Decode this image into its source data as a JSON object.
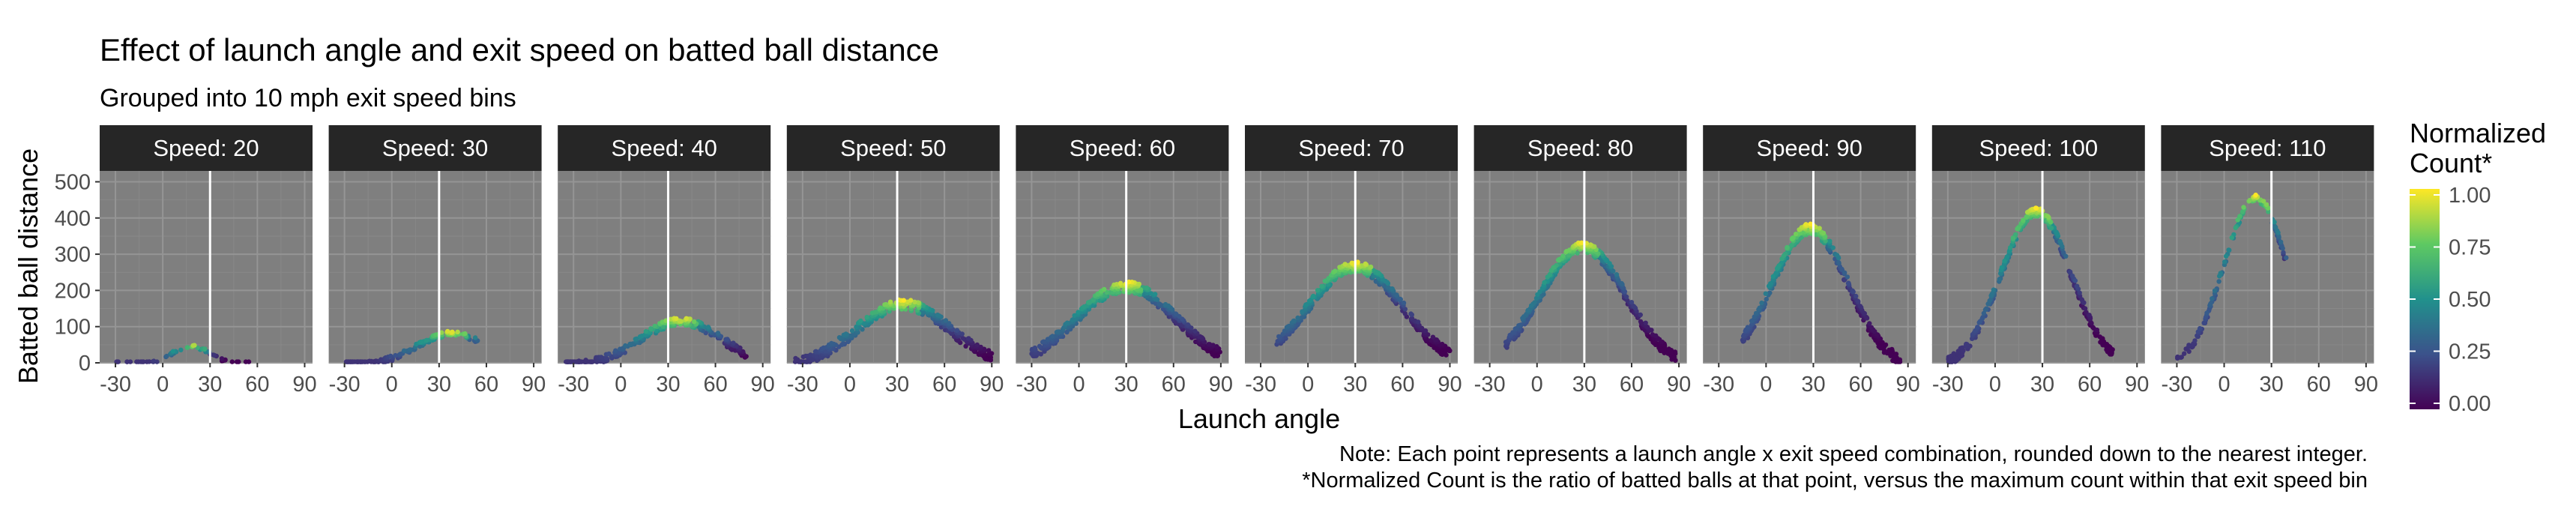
{
  "chart_data": {
    "type": "scatter",
    "title": "Effect of launch angle and exit speed on batted ball distance",
    "subtitle": "Grouped into 10 mph exit speed bins",
    "xlabel": "Launch angle",
    "ylabel": "Batted ball distance",
    "facet_prefix": "Speed: ",
    "xlim": [
      -40,
      95
    ],
    "ylim": [
      0,
      530
    ],
    "x_ticks": [
      -30,
      0,
      30,
      60,
      90
    ],
    "y_ticks": [
      0,
      100,
      200,
      300,
      400,
      500
    ],
    "vline_x": 30,
    "panel_background": "#7f7f7f",
    "strip_background": "#262626",
    "legend": {
      "title_line1": "Normalized",
      "title_line2": "Count*",
      "position": "right",
      "ticks": [
        "1.00",
        "0.75",
        "0.50",
        "0.25",
        "0.00"
      ],
      "colors": [
        "#fde725",
        "#5ec962",
        "#21918c",
        "#3b528b",
        "#440154"
      ]
    },
    "panels": [
      {
        "speed": 20,
        "xmin": -30,
        "xmax": 55,
        "peak_x": 18,
        "peak_y": 50,
        "width": 12,
        "spread": 8,
        "n": 60
      },
      {
        "speed": 30,
        "xmin": -30,
        "xmax": 55,
        "peak_x": 38,
        "peak_y": 88,
        "width": 22,
        "spread": 14,
        "n": 150
      },
      {
        "speed": 40,
        "xmin": -35,
        "xmax": 80,
        "peak_x": 38,
        "peak_y": 125,
        "width": 26,
        "spread": 22,
        "n": 280
      },
      {
        "speed": 50,
        "xmin": -35,
        "xmax": 90,
        "peak_x": 34,
        "peak_y": 175,
        "width": 30,
        "spread": 30,
        "n": 360
      },
      {
        "speed": 60,
        "xmin": -30,
        "xmax": 90,
        "peak_x": 30,
        "peak_y": 225,
        "width": 32,
        "spread": 30,
        "n": 400
      },
      {
        "speed": 70,
        "xmin": -20,
        "xmax": 90,
        "peak_x": 30,
        "peak_y": 280,
        "width": 30,
        "spread": 30,
        "n": 400
      },
      {
        "speed": 80,
        "xmin": -20,
        "xmax": 88,
        "peak_x": 29,
        "peak_y": 335,
        "width": 27,
        "spread": 30,
        "n": 400
      },
      {
        "speed": 90,
        "xmin": -15,
        "xmax": 85,
        "peak_x": 28,
        "peak_y": 385,
        "width": 24,
        "spread": 30,
        "n": 400
      },
      {
        "speed": 100,
        "xmin": -30,
        "xmax": 75,
        "peak_x": 26,
        "peak_y": 430,
        "width": 22,
        "spread": 25,
        "n": 360
      },
      {
        "speed": 110,
        "xmin": -30,
        "xmax": 40,
        "peak_x": 20,
        "peak_y": 465,
        "width": 20,
        "spread": 20,
        "n": 140
      }
    ]
  },
  "notes": {
    "line1": "Note: Each point represents a launch angle x exit speed combination, rounded down to the nearest integer.",
    "line2": "*Normalized Count is the ratio of batted balls at that point, versus the maximum count within that exit speed bin"
  }
}
